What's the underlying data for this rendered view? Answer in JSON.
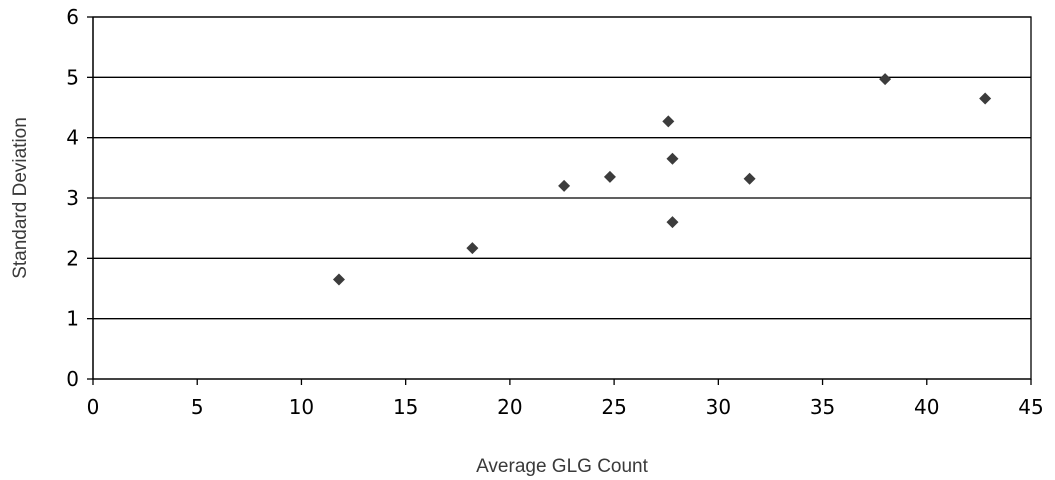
{
  "chart_data": {
    "type": "scatter",
    "xlabel": "Average GLG Count",
    "ylabel": "Standard Deviation",
    "xlim": [
      0,
      45
    ],
    "ylim": [
      0,
      6
    ],
    "x_ticks": [
      0,
      5,
      10,
      15,
      20,
      25,
      30,
      35,
      40,
      45
    ],
    "y_ticks": [
      0,
      1,
      2,
      3,
      4,
      5,
      6
    ],
    "grid": "horizontal",
    "legend": "none",
    "marker": "diamond",
    "marker_color": "#3c3c3c",
    "series": [
      {
        "points": [
          {
            "x": 11.8,
            "y": 1.65
          },
          {
            "x": 18.2,
            "y": 2.17
          },
          {
            "x": 22.6,
            "y": 3.2
          },
          {
            "x": 24.8,
            "y": 3.35
          },
          {
            "x": 27.6,
            "y": 4.27
          },
          {
            "x": 27.8,
            "y": 3.65
          },
          {
            "x": 27.8,
            "y": 2.6
          },
          {
            "x": 31.5,
            "y": 3.32
          },
          {
            "x": 38.0,
            "y": 4.97
          },
          {
            "x": 42.8,
            "y": 4.65
          }
        ]
      }
    ]
  }
}
